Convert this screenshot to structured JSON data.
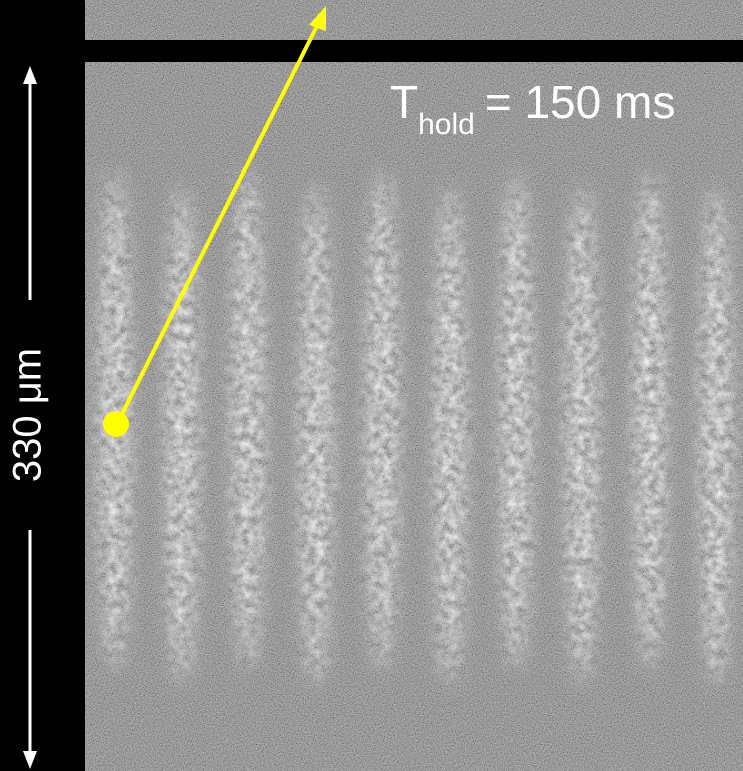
{
  "annotation": {
    "symbol": "T",
    "subscript": "hold",
    "value": "= 150 ms"
  },
  "scale_bar": {
    "label": "330 μm"
  }
}
